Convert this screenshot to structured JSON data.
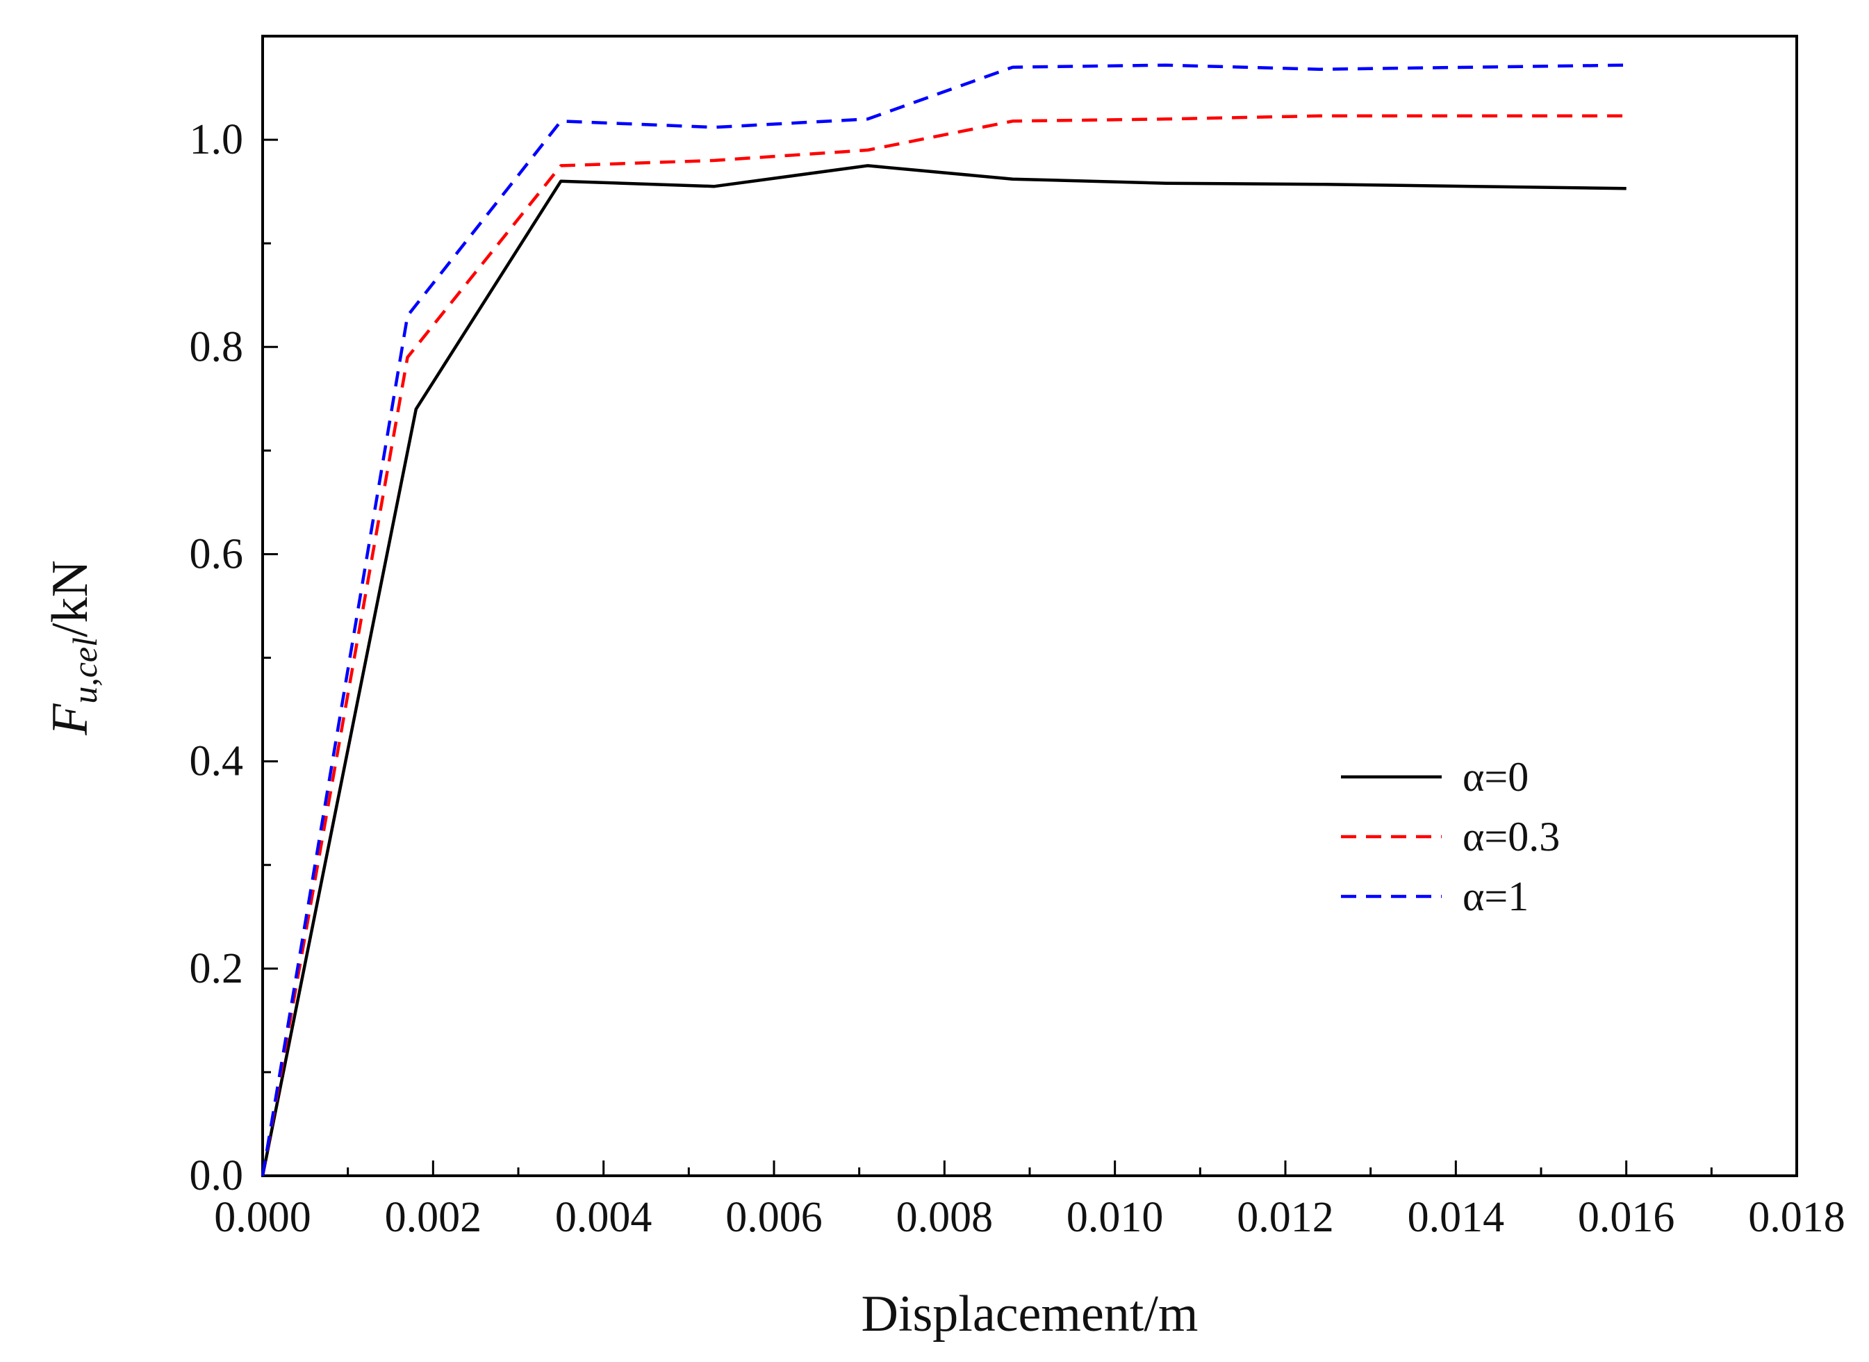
{
  "chart_data": {
    "type": "line",
    "title": "",
    "xlabel": "Displacement/m",
    "ylabel": {
      "main": "F",
      "subscript": "u,cel",
      "unit": "/kN"
    },
    "xlim": [
      0.0,
      0.018
    ],
    "ylim": [
      0.0,
      1.1
    ],
    "xticks": [
      "0.000",
      "0.002",
      "0.004",
      "0.006",
      "0.008",
      "0.010",
      "0.012",
      "0.014",
      "0.016",
      "0.018"
    ],
    "yticks": [
      "0.0",
      "0.2",
      "0.4",
      "0.6",
      "0.8",
      "1.0"
    ],
    "grid": false,
    "legend_position": "center-right",
    "series": [
      {
        "name": "α=0",
        "color": "#000000",
        "style": "solid",
        "x": [
          0.0,
          0.0018,
          0.0035,
          0.0053,
          0.0071,
          0.0088,
          0.0106,
          0.0124,
          0.0142,
          0.016
        ],
        "y": [
          0.0,
          0.74,
          0.96,
          0.955,
          0.975,
          0.962,
          0.958,
          0.957,
          0.955,
          0.953
        ]
      },
      {
        "name": "α=0.3",
        "color": "#ff0000",
        "style": "dashed",
        "x": [
          0.0,
          0.0017,
          0.0035,
          0.0053,
          0.0071,
          0.0088,
          0.0106,
          0.0124,
          0.0142,
          0.016
        ],
        "y": [
          0.0,
          0.79,
          0.975,
          0.98,
          0.99,
          1.018,
          1.02,
          1.023,
          1.023,
          1.023
        ]
      },
      {
        "name": "α=1",
        "color": "#0000ff",
        "style": "dashed",
        "x": [
          0.0,
          0.0017,
          0.0035,
          0.0053,
          0.0071,
          0.0088,
          0.0106,
          0.0124,
          0.0142,
          0.016
        ],
        "y": [
          0.0,
          0.83,
          1.018,
          1.012,
          1.02,
          1.07,
          1.072,
          1.068,
          1.07,
          1.072
        ]
      }
    ]
  }
}
